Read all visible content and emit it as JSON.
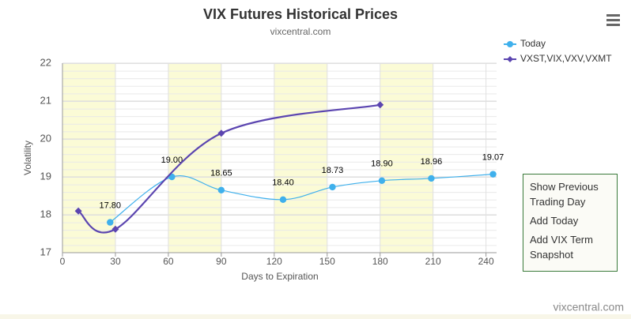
{
  "chart_data": {
    "type": "line",
    "title": "VIX Futures Historical Prices",
    "subtitle": "vixcentral.com",
    "x_label": "Days to Expiration",
    "y_label": "Volatility",
    "xlim": [
      0,
      246
    ],
    "xticks": [
      0,
      30,
      60,
      90,
      120,
      150,
      180,
      210,
      240
    ],
    "ylim": [
      17,
      22
    ],
    "yticks": [
      17,
      18,
      19,
      20,
      21,
      22
    ],
    "grid": true,
    "legend": "top-right",
    "series": [
      {
        "name": "Today",
        "color": "#3fb0ec",
        "marker": "circle",
        "x": [
          27,
          62,
          90,
          125,
          153,
          181,
          209,
          244
        ],
        "values": [
          17.8,
          19.0,
          18.65,
          18.4,
          18.73,
          18.9,
          18.96,
          19.07
        ],
        "value_labels": [
          "17.80",
          "19.00",
          "18.65",
          "18.40",
          "18.73",
          "18.90",
          "18.96",
          "19.07"
        ]
      },
      {
        "name": "VXST,VIX,VXV,VXMT",
        "color": "#5b45b0",
        "marker": "diamond",
        "x": [
          9,
          30,
          90,
          180
        ],
        "values": [
          18.1,
          17.62,
          20.15,
          20.9
        ]
      }
    ]
  },
  "menu": [
    "Show Previous Trading Day",
    "Add Today",
    "Add VIX Term Snapshot"
  ],
  "credit": "vixcentral.com"
}
